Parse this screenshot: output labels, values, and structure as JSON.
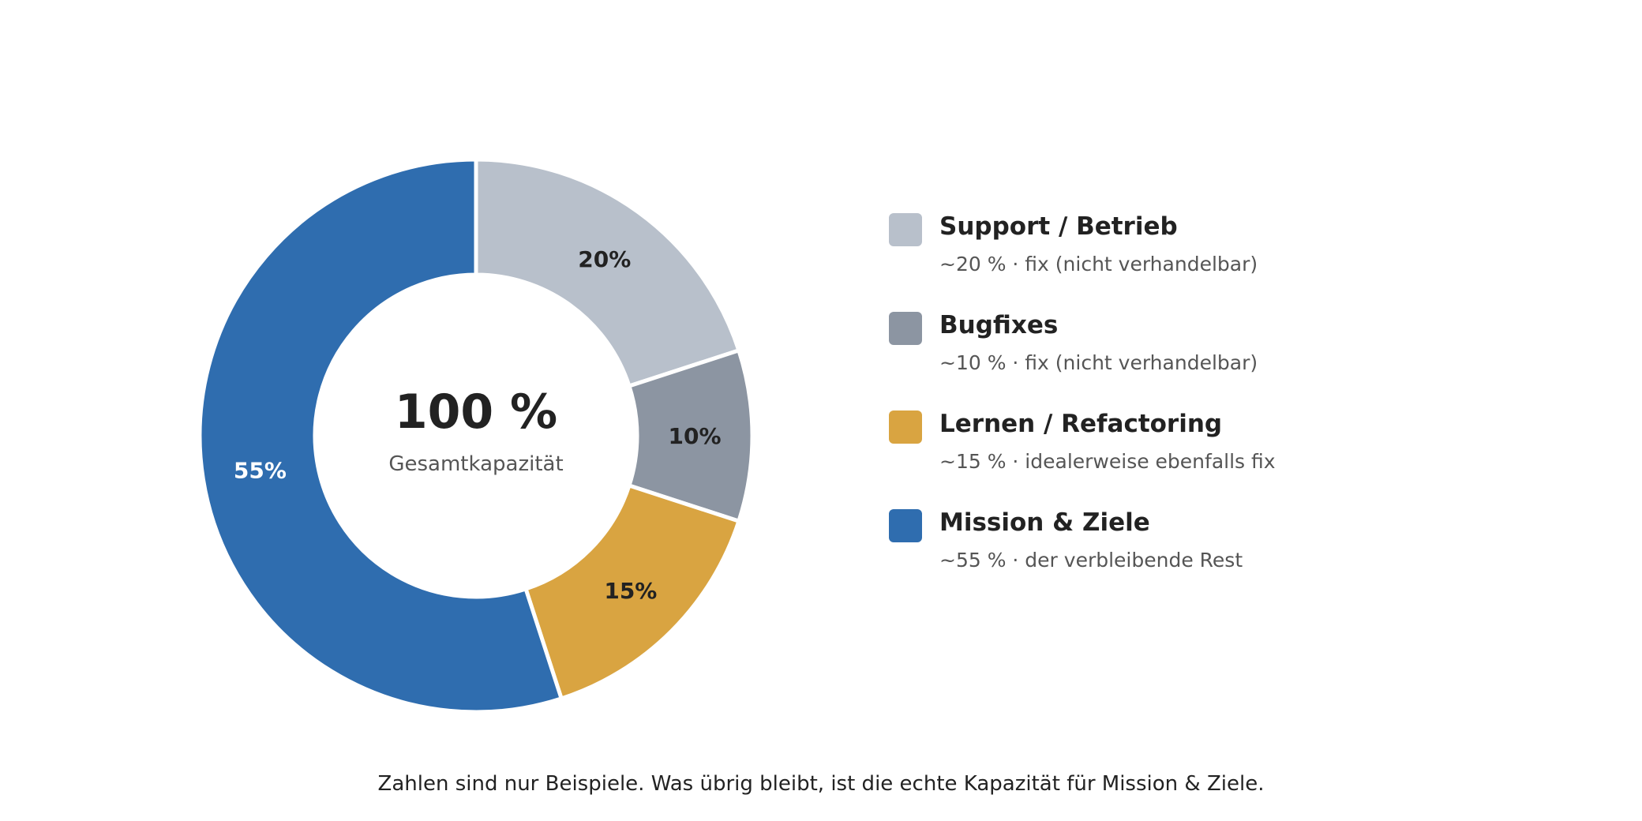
{
  "chart_data": {
    "type": "pie",
    "variant": "donut",
    "categories": [
      "Support / Betrieb",
      "Bugfixes",
      "Lernen / Refactoring",
      "Mission & Ziele"
    ],
    "values": [
      20,
      10,
      15,
      55
    ],
    "value_labels": [
      "20%",
      "10%",
      "15%",
      "55%"
    ],
    "colors": [
      "#b8c0cb",
      "#8c95a2",
      "#d9a441",
      "#2f6daf"
    ],
    "label_colors": [
      "#222222",
      "#222222",
      "#222222",
      "#ffffff"
    ],
    "center": {
      "value": "100 %",
      "caption": "Gesamtkapazität"
    },
    "legend_position": "right",
    "legend": [
      {
        "title": "Support / Betrieb",
        "description": "~20 % · fix (nicht verhandelbar)"
      },
      {
        "title": "Bugfixes",
        "description": "~10 % · fix (nicht verhandelbar)"
      },
      {
        "title": "Lernen / Refactoring",
        "description": "~15 % · idealerweise ebenfalls fix"
      },
      {
        "title": "Mission & Ziele",
        "description": "~55 % · der verbleibende Rest"
      }
    ]
  },
  "footnote": "Zahlen sind nur Beispiele. Was übrig bleibt, ist die echte Kapazität für Mission & Ziele."
}
